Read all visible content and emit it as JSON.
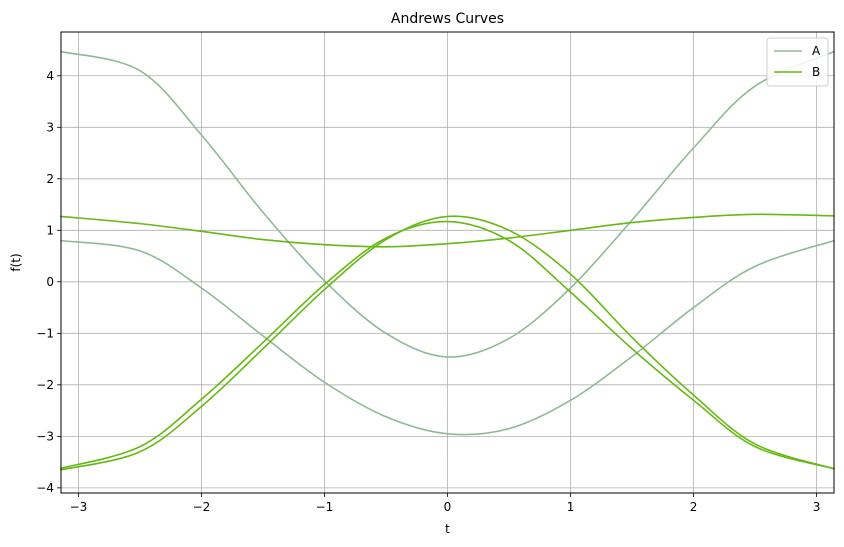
{
  "chart_data": {
    "type": "line",
    "title": "Andrews Curves",
    "xlabel": "t",
    "ylabel": "f(t)",
    "xlim": [
      -3.14159,
      3.14159
    ],
    "ylim": [
      -4.1,
      4.85
    ],
    "grid": true,
    "legend_position": "top-right",
    "x_ticks": [
      -3,
      -2,
      -1,
      0,
      1,
      2,
      3
    ],
    "x_tick_labels": [
      "−3",
      "−2",
      "−1",
      "0",
      "1",
      "2",
      "3"
    ],
    "y_ticks": [
      -4,
      -3,
      -2,
      -1,
      0,
      1,
      2,
      3,
      4
    ],
    "y_tick_labels": [
      "−4",
      "−3",
      "−2",
      "−1",
      "0",
      "1",
      "2",
      "3",
      "4"
    ],
    "legend": [
      {
        "label": "A",
        "color": "#8fb996"
      },
      {
        "label": "B",
        "color": "#66b812"
      }
    ],
    "series": [
      {
        "name": "A",
        "color": "#8fb996",
        "x": [
          -3.1416,
          -2.5,
          -2.0,
          -1.5,
          -1.0,
          -0.5,
          0.0,
          0.5,
          1.0,
          1.5,
          2.0,
          2.5,
          3.1416
        ],
        "y": [
          4.47,
          4.1,
          2.85,
          1.35,
          0.02,
          -1.0,
          -1.46,
          -1.1,
          -0.12,
          1.2,
          2.6,
          3.8,
          4.47
        ]
      },
      {
        "name": "A",
        "color": "#8fb996",
        "x": [
          -3.1416,
          -2.5,
          -2.0,
          -1.5,
          -1.0,
          -0.5,
          0.0,
          0.5,
          1.0,
          1.5,
          2.0,
          2.5,
          3.1416
        ],
        "y": [
          0.8,
          0.6,
          -0.12,
          -1.05,
          -1.95,
          -2.62,
          -2.95,
          -2.85,
          -2.3,
          -1.45,
          -0.5,
          0.3,
          0.8
        ]
      },
      {
        "name": "B",
        "color": "#66b812",
        "x": [
          -3.1416,
          -2.5,
          -2.0,
          -1.5,
          -1.0,
          -0.5,
          0.0,
          0.5,
          1.0,
          1.5,
          2.0,
          2.5,
          3.1416
        ],
        "y": [
          -3.62,
          -3.2,
          -2.28,
          -1.18,
          -0.05,
          0.85,
          1.17,
          0.8,
          -0.2,
          -1.3,
          -2.3,
          -3.2,
          -3.63
        ]
      },
      {
        "name": "B",
        "color": "#66b812",
        "x": [
          -3.1416,
          -2.5,
          -2.0,
          -1.5,
          -1.0,
          -0.5,
          0.0,
          0.5,
          1.0,
          1.5,
          2.0,
          2.5,
          3.1416
        ],
        "y": [
          -3.65,
          -3.3,
          -2.42,
          -1.3,
          -0.15,
          0.82,
          1.27,
          1.0,
          0.15,
          -1.08,
          -2.2,
          -3.15,
          -3.63
        ]
      },
      {
        "name": "B",
        "color": "#66b812",
        "x": [
          -3.1416,
          -2.5,
          -2.0,
          -1.5,
          -1.0,
          -0.5,
          0.0,
          0.5,
          1.0,
          1.5,
          2.0,
          2.5,
          3.1416
        ],
        "y": [
          1.27,
          1.13,
          0.98,
          0.82,
          0.72,
          0.68,
          0.74,
          0.85,
          1.0,
          1.15,
          1.25,
          1.31,
          1.28
        ]
      }
    ]
  }
}
